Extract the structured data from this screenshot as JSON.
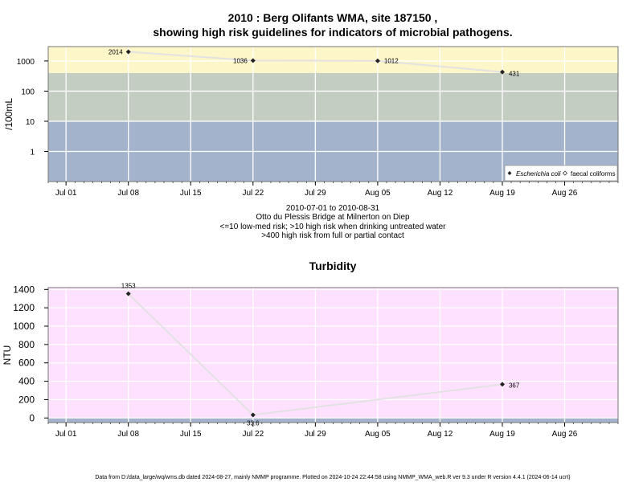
{
  "title_line1": "2010 : Berg Olifants WMA, site 187150 ,",
  "title_line2": "showing high risk guidelines for indicators of microbial pathogens.",
  "info_lines": [
    "2010-07-01 to 2010-08-31",
    "Otto du Plessis Bridge at Milnerton on Diep",
    "<=10 low-med risk; >10 high risk when drinking untreated water",
    ">400 high risk from full or partial contact"
  ],
  "footer": "Data from D:/data_large/wq/wms.db dated 2024-08-27, mainly NMMP programme. Plotted on 2024-10-24 22:44:58 using NMMP_WMA_web.R ver 9.3 under R version 4.4.1 (2024-06-14 ucrt)",
  "colors": {
    "band_low": "#a3b3cc",
    "band_mid": "#c4cdc2",
    "band_high": "#fdf6c8",
    "turbidity_bg": "#fee1fe",
    "turbidity_base": "#a3b3cc",
    "series_line": "#e2e2e2",
    "point": "#222222"
  },
  "chart_data": [
    {
      "type": "line",
      "name": "microbial",
      "ylabel": "/100mL",
      "y_scale": "log",
      "ylim": [
        0.1,
        3000
      ],
      "y_ticks": [
        1,
        10,
        100,
        1000
      ],
      "y_tick_labels": [
        "1",
        "10",
        "100",
        "1000"
      ],
      "x_ticks": [
        "2010-07-01",
        "2010-07-08",
        "2010-07-15",
        "2010-07-22",
        "2010-07-29",
        "2010-08-05",
        "2010-08-12",
        "2010-08-19",
        "2010-08-26"
      ],
      "x_tick_labels": [
        "Jul 01",
        "Jul 08",
        "Jul 15",
        "Jul 22",
        "Jul 29",
        "Aug 05",
        "Aug 12",
        "Aug 19",
        "Aug 26"
      ],
      "xlim": [
        "2010-06-29",
        "2010-09-01"
      ],
      "bands": [
        {
          "from": 0.1,
          "to": 10,
          "color": "#a3b3cc"
        },
        {
          "from": 10,
          "to": 400,
          "color": "#c4cdc2"
        },
        {
          "from": 400,
          "to": 3000,
          "color": "#fdf6c8"
        }
      ],
      "series": [
        {
          "name": "Escherichia coli",
          "x": [
            "2010-07-08",
            "2010-07-22",
            "2010-08-05",
            "2010-08-19"
          ],
          "values": [
            2014,
            1036,
            1012,
            431
          ],
          "labels": [
            "2014",
            "1036",
            "1012",
            "431"
          ]
        }
      ],
      "legend": {
        "placement": "bottom-right",
        "entries": [
          "Escherichia coli",
          "faecal coliforms"
        ]
      },
      "grid": true
    },
    {
      "type": "line",
      "name": "turbidity",
      "title": "Turbidity",
      "ylabel": "NTU",
      "ylim": [
        -50,
        1420
      ],
      "y_ticks": [
        0,
        200,
        400,
        600,
        800,
        1000,
        1200,
        1400
      ],
      "y_tick_labels": [
        "0",
        "200",
        "400",
        "600",
        "800",
        "1000",
        "1200",
        "1400"
      ],
      "x_ticks": [
        "2010-07-01",
        "2010-07-08",
        "2010-07-15",
        "2010-07-22",
        "2010-07-29",
        "2010-08-05",
        "2010-08-12",
        "2010-08-19",
        "2010-08-26"
      ],
      "x_tick_labels": [
        "Jul 01",
        "Jul 08",
        "Jul 15",
        "Jul 22",
        "Jul 29",
        "Aug 05",
        "Aug 12",
        "Aug 19",
        "Aug 26"
      ],
      "xlim": [
        "2010-06-29",
        "2010-09-01"
      ],
      "series": [
        {
          "x": [
            "2010-07-08",
            "2010-07-22",
            "2010-08-19"
          ],
          "values": [
            1353,
            33.6,
            367
          ],
          "labels": [
            "1353",
            "33.6",
            "367"
          ]
        }
      ],
      "grid": true
    }
  ]
}
